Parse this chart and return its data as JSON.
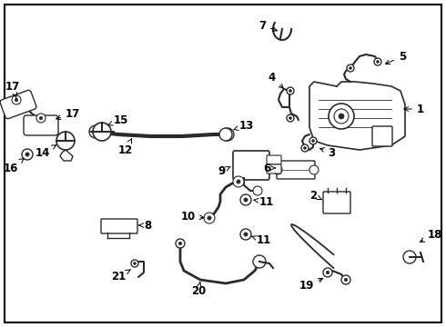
{
  "background_color": "#ffffff",
  "border_color": "#000000",
  "line_color": "#2a2a2a",
  "fig_width": 4.9,
  "fig_height": 3.6,
  "dpi": 100,
  "border_linewidth": 1.5,
  "font_size": 8.5
}
